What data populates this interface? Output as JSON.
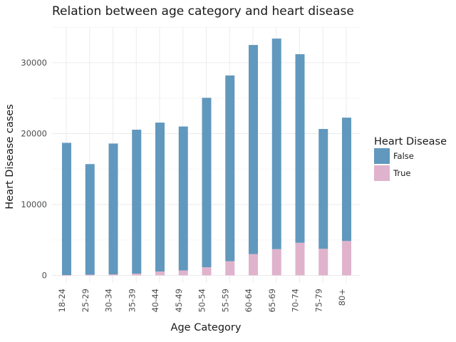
{
  "chart_data": {
    "type": "bar",
    "stacked": true,
    "title": "Relation between age category and heart disease",
    "xlabel": "Age Category",
    "ylabel": "Heart Disease cases",
    "categories": [
      "18-24",
      "25-29",
      "30-34",
      "35-39",
      "40-44",
      "45-49",
      "50-54",
      "55-59",
      "60-64",
      "65-69",
      "70-74",
      "75-79",
      "80+"
    ],
    "series": [
      {
        "name": "False",
        "color": "#6198bd",
        "values": [
          18650,
          15600,
          18450,
          20300,
          21000,
          20300,
          23900,
          26200,
          29500,
          29700,
          26600,
          16900,
          17400
        ]
      },
      {
        "name": "True",
        "color": "#e0b3cc",
        "values": [
          50,
          100,
          150,
          250,
          550,
          700,
          1150,
          2000,
          3000,
          3700,
          4600,
          3750,
          4850
        ]
      }
    ],
    "yticks": [
      0,
      10000,
      20000,
      30000
    ],
    "ylim": [
      -1500,
      35000
    ],
    "grid": true,
    "legend": {
      "title": "Heart Disease",
      "position": "right"
    }
  }
}
